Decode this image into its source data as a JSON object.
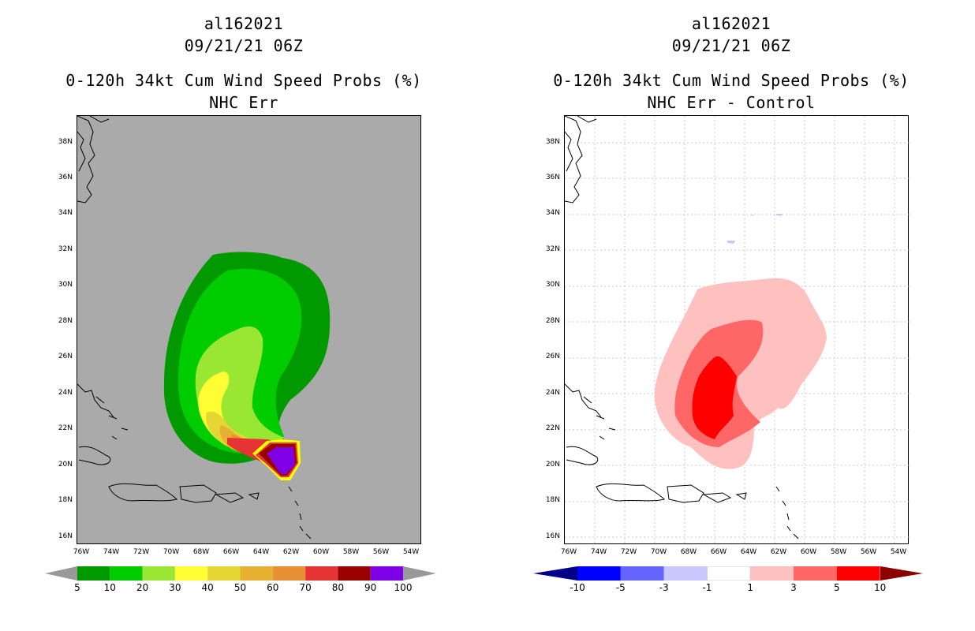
{
  "left": {
    "title1": "al162021",
    "title2": "09/21/21 06Z",
    "title3": "0-120h 34kt Cum Wind Speed Probs (%)",
    "title4": "NHC Err",
    "ylabels": [
      "38N",
      "36N",
      "34N",
      "32N",
      "30N",
      "28N",
      "26N",
      "24N",
      "22N",
      "20N",
      "18N",
      "16N"
    ],
    "xlabels": [
      "76W",
      "74W",
      "72W",
      "70W",
      "68W",
      "66W",
      "64W",
      "62W",
      "60W",
      "58W",
      "56W",
      "54W"
    ],
    "colorbar": {
      "labels": [
        "5",
        "10",
        "20",
        "30",
        "40",
        "50",
        "60",
        "70",
        "80",
        "90",
        "100"
      ],
      "colors": [
        "#009a00",
        "#00cc00",
        "#99e633",
        "#ffff33",
        "#e6d633",
        "#e6b033",
        "#e69033",
        "#e63333",
        "#990000",
        "#7f00e6"
      ],
      "low_arrow": "#999999",
      "high_arrow": "#999999"
    }
  },
  "right": {
    "title1": "al162021",
    "title2": "09/21/21 06Z",
    "title3": "0-120h 34kt Cum Wind Speed Probs (%)",
    "title4": "NHC Err - Control",
    "ylabels": [
      "38N",
      "36N",
      "34N",
      "32N",
      "30N",
      "28N",
      "26N",
      "24N",
      "22N",
      "20N",
      "18N",
      "16N"
    ],
    "xlabels": [
      "76W",
      "74W",
      "72W",
      "70W",
      "68W",
      "66W",
      "64W",
      "62W",
      "60W",
      "58W",
      "56W",
      "54W"
    ],
    "colorbar": {
      "labels": [
        "-10",
        "-5",
        "-3",
        "-1",
        "1",
        "3",
        "5",
        "10"
      ],
      "colors": [
        "#0000ff",
        "#6666ff",
        "#c8c8ff",
        "#ffffff",
        "#ffc0c0",
        "#ff6666",
        "#ff0000"
      ],
      "low_arrow": "#00008b",
      "high_arrow": "#8b0000"
    }
  }
}
